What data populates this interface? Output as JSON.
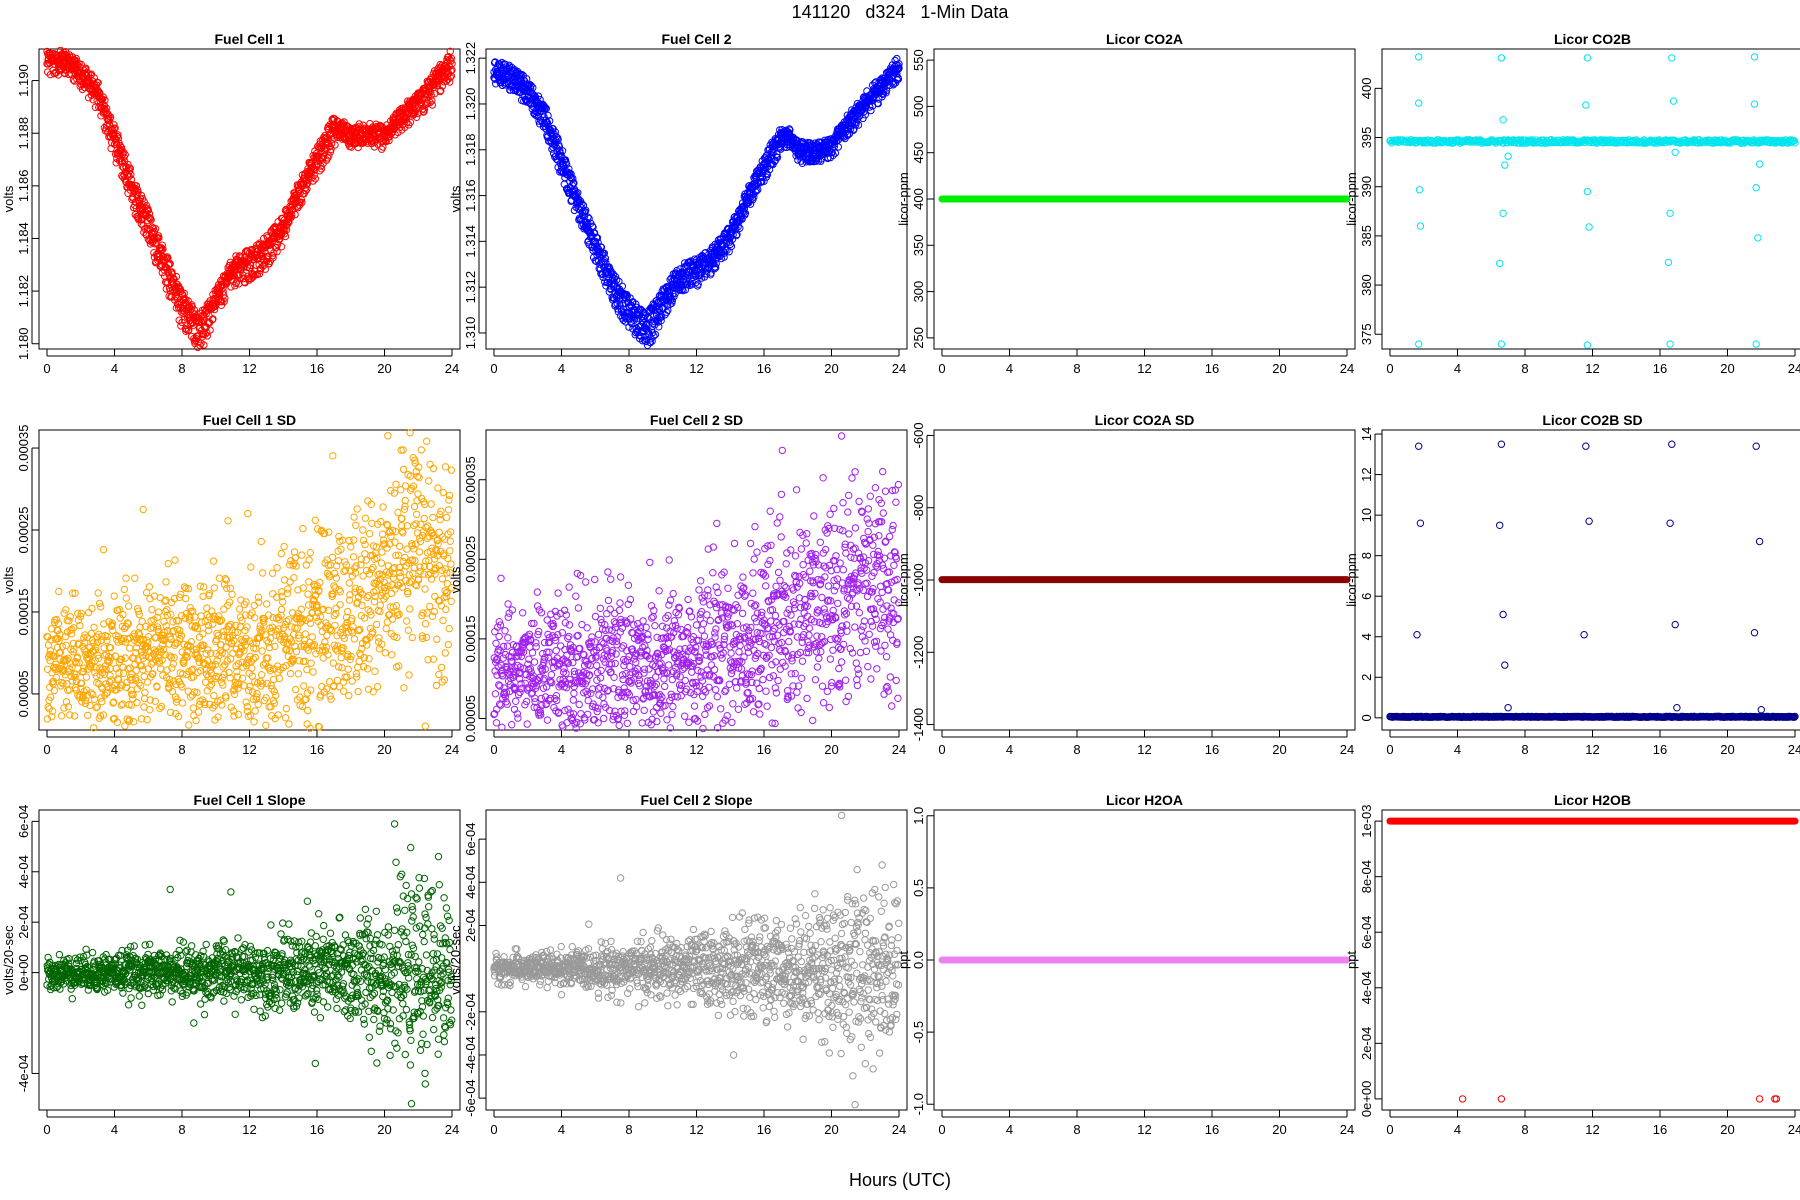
{
  "figure": {
    "title": "141120   d324   1-Min Data",
    "xlabel": "Hours (UTC)"
  },
  "chart_data": [
    {
      "id": "fc1",
      "type": "scatter",
      "title": "Fuel Cell 1",
      "ylabel": "volts",
      "color": "#ff0000",
      "xlim": [
        0,
        24
      ],
      "ylim": [
        1.1798,
        1.1912
      ],
      "xticks": [
        0,
        4,
        8,
        12,
        16,
        20,
        24
      ],
      "yticks": [
        1.18,
        1.182,
        1.184,
        1.186,
        1.188,
        1.19
      ],
      "ytick_labels": [
        "1.180",
        "1.182",
        "1.184",
        "1.186",
        "1.188",
        "1.190"
      ],
      "series": [
        {
          "band": 0.0009,
          "x": [
            0,
            1,
            2,
            3,
            4,
            5,
            6,
            7,
            8,
            9,
            9.3,
            10,
            11,
            12,
            13,
            14,
            15,
            16,
            17,
            17.5,
            18,
            19,
            20,
            21,
            22,
            23,
            23.5,
            24
          ],
          "y": [
            1.1905,
            1.1906,
            1.1902,
            1.1893,
            1.1875,
            1.1857,
            1.1842,
            1.1826,
            1.181,
            1.1802,
            1.1803,
            1.1815,
            1.1826,
            1.1828,
            1.1833,
            1.1842,
            1.1857,
            1.1868,
            1.1879,
            1.1882,
            1.1878,
            1.188,
            1.1878,
            1.1885,
            1.189,
            1.1896,
            1.1903,
            1.1904
          ]
        },
        {
          "band": 0.0006,
          "x": [
            0,
            1,
            2,
            3,
            4,
            5,
            6,
            7,
            8,
            9,
            10,
            11,
            12,
            13,
            14,
            15,
            16,
            17,
            18,
            19,
            20,
            21,
            22,
            23,
            24
          ],
          "y": [
            1.191,
            1.1909,
            1.1905,
            1.1897,
            1.188,
            1.1863,
            1.1848,
            1.1832,
            1.1818,
            1.1808,
            1.1818,
            1.183,
            1.1833,
            1.1838,
            1.1846,
            1.186,
            1.1872,
            1.1884,
            1.1879,
            1.1879,
            1.1879,
            1.1887,
            1.1893,
            1.1901,
            1.1909
          ]
        }
      ]
    },
    {
      "id": "fc2",
      "type": "scatter",
      "title": "Fuel Cell 2",
      "ylabel": "volts",
      "color": "#0000ff",
      "xlim": [
        0,
        24
      ],
      "ylim": [
        1.3093,
        1.3224
      ],
      "xticks": [
        0,
        4,
        8,
        12,
        16,
        20,
        24
      ],
      "yticks": [
        1.31,
        1.312,
        1.314,
        1.316,
        1.318,
        1.32,
        1.322
      ],
      "ytick_labels": [
        "1.310",
        "1.312",
        "1.314",
        "1.316",
        "1.318",
        "1.320",
        "1.322"
      ],
      "series": [
        {
          "band": 0.0008,
          "x": [
            0,
            1,
            2,
            3,
            4,
            5,
            6,
            7,
            8,
            9,
            9.3,
            10,
            11,
            12,
            13,
            14,
            15,
            16,
            17,
            17.5,
            18,
            19,
            20,
            21,
            22,
            23,
            23.5,
            24
          ],
          "y": [
            1.321,
            1.321,
            1.3203,
            1.3192,
            1.3172,
            1.3153,
            1.3135,
            1.3118,
            1.3105,
            1.3098,
            1.3099,
            1.311,
            1.3122,
            1.3124,
            1.313,
            1.314,
            1.3157,
            1.317,
            1.3183,
            1.3186,
            1.3178,
            1.3178,
            1.318,
            1.319,
            1.3198,
            1.3206,
            1.3212,
            1.3213
          ]
        },
        {
          "band": 0.0006,
          "x": [
            0,
            1,
            2,
            3,
            4,
            5,
            6,
            7,
            8,
            9,
            10,
            11,
            12,
            13,
            14,
            15,
            16,
            17,
            18,
            19,
            20,
            21,
            22,
            23,
            24
          ],
          "y": [
            1.3216,
            1.3214,
            1.3208,
            1.3197,
            1.3178,
            1.3158,
            1.3141,
            1.3124,
            1.3113,
            1.3105,
            1.3116,
            1.3127,
            1.313,
            1.3135,
            1.3144,
            1.316,
            1.3174,
            1.3188,
            1.3181,
            1.318,
            1.3182,
            1.3193,
            1.3202,
            1.321,
            1.3218
          ]
        }
      ]
    },
    {
      "id": "co2a",
      "type": "scatter",
      "title": "Licor CO2A",
      "ylabel": "licor-ppm",
      "color": "#00ee00",
      "xlim": [
        0,
        24
      ],
      "ylim": [
        238,
        562
      ],
      "xticks": [
        0,
        4,
        8,
        12,
        16,
        20,
        24
      ],
      "yticks": [
        250,
        300,
        350,
        400,
        450,
        500,
        550
      ],
      "ytick_labels": [
        "250",
        "300",
        "350",
        "400",
        "450",
        "500",
        "550"
      ],
      "constant": {
        "y": 400,
        "x": [
          0,
          24
        ]
      }
    },
    {
      "id": "co2b",
      "type": "scatter",
      "title": "Licor CO2B",
      "ylabel": "licor-ppm",
      "color": "#00e5ee",
      "xlim": [
        0,
        24
      ],
      "ylim": [
        373.5,
        404
      ],
      "xticks": [
        0,
        4,
        8,
        12,
        16,
        20,
        24
      ],
      "yticks": [
        375,
        380,
        385,
        390,
        395,
        400
      ],
      "ytick_labels": [
        "375",
        "380",
        "385",
        "390",
        "395",
        "400"
      ],
      "baseline": {
        "x": [
          0,
          24
        ],
        "y": [
          394.6,
          394.6
        ],
        "band": 0.35
      },
      "outliers": [
        {
          "x": 1.7,
          "y": 403.2
        },
        {
          "x": 1.7,
          "y": 398.5
        },
        {
          "x": 1.75,
          "y": 389.7
        },
        {
          "x": 1.8,
          "y": 386
        },
        {
          "x": 1.7,
          "y": 374
        },
        {
          "x": 6.6,
          "y": 403.1
        },
        {
          "x": 6.7,
          "y": 396.8
        },
        {
          "x": 6.7,
          "y": 387.3
        },
        {
          "x": 6.5,
          "y": 382.2
        },
        {
          "x": 6.6,
          "y": 374
        },
        {
          "x": 6.8,
          "y": 392.2
        },
        {
          "x": 7.0,
          "y": 393.1
        },
        {
          "x": 11.7,
          "y": 403.1
        },
        {
          "x": 11.6,
          "y": 398.3
        },
        {
          "x": 11.7,
          "y": 389.5
        },
        {
          "x": 11.8,
          "y": 385.9
        },
        {
          "x": 11.7,
          "y": 373.9
        },
        {
          "x": 16.7,
          "y": 403.1
        },
        {
          "x": 16.8,
          "y": 398.7
        },
        {
          "x": 16.6,
          "y": 387.3
        },
        {
          "x": 16.5,
          "y": 382.3
        },
        {
          "x": 16.6,
          "y": 374
        },
        {
          "x": 16.9,
          "y": 393.5
        },
        {
          "x": 21.6,
          "y": 403.2
        },
        {
          "x": 21.6,
          "y": 398.4
        },
        {
          "x": 21.7,
          "y": 389.9
        },
        {
          "x": 21.8,
          "y": 384.8
        },
        {
          "x": 21.7,
          "y": 374
        },
        {
          "x": 21.9,
          "y": 392.3
        }
      ]
    },
    {
      "id": "fc1sd",
      "type": "scatter",
      "title": "Fuel Cell 1 SD",
      "ylabel": "volts",
      "color": "#ffa500",
      "xlim": [
        0,
        24
      ],
      "ylim": [
        6e-06,
        0.000372
      ],
      "xticks": [
        0,
        4,
        8,
        12,
        16,
        20,
        24
      ],
      "yticks": [
        5e-05,
        0.00015,
        0.00025,
        0.00035
      ],
      "ytick_labels": [
        "0.00005",
        "0.00015",
        "0.00025",
        "0.00035"
      ],
      "trend": {
        "x": [
          0,
          4,
          8,
          12,
          16,
          18,
          20,
          22,
          24
        ],
        "y": [
          9e-05,
          8.5e-05,
          0.0001,
          9.5e-05,
          0.000135,
          0.00014,
          0.000185,
          0.000215,
          0.00021
        ]
      },
      "spread": 3.5e-05,
      "highlights": [
        {
          "x": 20.2,
          "y": 0.000365
        },
        {
          "x": 21.8,
          "y": 0.000335
        },
        {
          "x": 22.9,
          "y": 0.000325
        },
        {
          "x": 5.7,
          "y": 0.000275
        },
        {
          "x": 15.9,
          "y": 0.000262
        },
        {
          "x": 11.8,
          "y": 4e-05
        },
        {
          "x": 17.0,
          "y": 6e-05
        },
        {
          "x": 23.6,
          "y": 0.0001
        }
      ]
    },
    {
      "id": "fc2sd",
      "type": "scatter",
      "title": "Fuel Cell 2 SD",
      "ylabel": "volts",
      "color": "#a020f0",
      "xlim": [
        0,
        24
      ],
      "ylim": [
        3.55e-05,
        0.0004125
      ],
      "xticks": [
        0,
        4,
        8,
        12,
        16,
        20,
        24
      ],
      "yticks": [
        5e-05,
        0.00015,
        0.00025,
        0.00035
      ],
      "ytick_labels": [
        "0.00005",
        "0.00015",
        "0.00025",
        "0.00035"
      ],
      "trend": {
        "x": [
          0,
          4,
          8,
          12,
          16,
          18,
          20,
          22,
          24
        ],
        "y": [
          0.000115,
          0.00011,
          0.00012,
          0.000125,
          0.000155,
          0.00016,
          0.000205,
          0.000225,
          0.000215
        ]
      },
      "spread": 3.5e-05,
      "highlights": [
        {
          "x": 20.6,
          "y": 0.000405
        },
        {
          "x": 21.4,
          "y": 0.00036
        },
        {
          "x": 22.6,
          "y": 0.00034
        },
        {
          "x": 15.2,
          "y": 0.00027
        },
        {
          "x": 4.2,
          "y": 6e-05
        },
        {
          "x": 6.5,
          "y": 5e-05
        },
        {
          "x": 23.3,
          "y": 9e-05
        }
      ]
    },
    {
      "id": "co2asd",
      "type": "scatter",
      "title": "Licor CO2A SD",
      "ylabel": "licor-ppm",
      "color": "#8b0000",
      "xlim": [
        0,
        24
      ],
      "ylim": [
        -1415,
        -585
      ],
      "xticks": [
        0,
        4,
        8,
        12,
        16,
        20,
        24
      ],
      "yticks": [
        -1400,
        -1200,
        -1000,
        -800,
        -600
      ],
      "ytick_labels": [
        "-1400",
        "-1200",
        "-1000",
        "-800",
        "-600"
      ],
      "constant": {
        "y": -999,
        "x": [
          0,
          24
        ]
      }
    },
    {
      "id": "co2bsd",
      "type": "scatter",
      "title": "Licor CO2B SD",
      "ylabel": "licor-ppm",
      "color": "#00008b",
      "xlim": [
        0,
        24
      ],
      "ylim": [
        -0.6,
        14.2
      ],
      "xticks": [
        0,
        4,
        8,
        12,
        16,
        20,
        24
      ],
      "yticks": [
        0,
        2,
        4,
        6,
        8,
        10,
        12,
        14
      ],
      "ytick_labels": [
        "0",
        "2",
        "4",
        "6",
        "8",
        "10",
        "12",
        "14"
      ],
      "baseline": {
        "x": [
          0,
          24
        ],
        "y": [
          0.05,
          0.05
        ],
        "band": 0.04
      },
      "outliers": [
        {
          "x": 1.7,
          "y": 13.4
        },
        {
          "x": 1.8,
          "y": 9.6
        },
        {
          "x": 1.6,
          "y": 4.1
        },
        {
          "x": 6.6,
          "y": 13.5
        },
        {
          "x": 6.5,
          "y": 9.5
        },
        {
          "x": 6.7,
          "y": 5.1
        },
        {
          "x": 6.8,
          "y": 2.6
        },
        {
          "x": 7.0,
          "y": 0.5
        },
        {
          "x": 11.6,
          "y": 13.4
        },
        {
          "x": 11.8,
          "y": 9.7
        },
        {
          "x": 11.5,
          "y": 4.1
        },
        {
          "x": 16.7,
          "y": 13.5
        },
        {
          "x": 16.6,
          "y": 9.6
        },
        {
          "x": 16.9,
          "y": 4.6
        },
        {
          "x": 17.0,
          "y": 0.5
        },
        {
          "x": 21.7,
          "y": 13.4
        },
        {
          "x": 21.9,
          "y": 8.7
        },
        {
          "x": 21.6,
          "y": 4.2
        },
        {
          "x": 22.0,
          "y": 0.4
        }
      ]
    },
    {
      "id": "fc1slope",
      "type": "scatter",
      "title": "Fuel Cell 1 Slope",
      "ylabel": "volts/20-sec",
      "color": "#006400",
      "xlim": [
        0,
        24
      ],
      "ylim": [
        -0.000545,
        0.000645
      ],
      "xticks": [
        0,
        4,
        8,
        12,
        16,
        20,
        24
      ],
      "yticks": [
        -0.0004,
        0,
        0.0002,
        0.0004,
        0.0006
      ],
      "ytick_labels": [
        "-4e-04",
        "0e+00",
        "2e-04",
        "4e-04",
        "6e-04"
      ],
      "trend": {
        "x": [
          0,
          24
        ],
        "y": [
          0,
          0
        ]
      },
      "spread_profile": {
        "x": [
          0,
          4,
          8,
          12,
          16,
          18,
          20,
          22,
          24
        ],
        "s": [
          3e-05,
          4e-05,
          5e-05,
          6e-05,
          9e-05,
          0.0001,
          0.00014,
          0.00016,
          0.00015
        ]
      },
      "highlights": [
        {
          "x": 20.6,
          "y": 0.00059
        },
        {
          "x": 7.3,
          "y": 0.00033
        },
        {
          "x": 10.9,
          "y": 0.00032
        },
        {
          "x": 23.2,
          "y": 0.00046
        },
        {
          "x": 21.6,
          "y": -0.00052
        },
        {
          "x": 22.4,
          "y": -0.0004
        },
        {
          "x": 15.9,
          "y": -0.00036
        },
        {
          "x": 8.7,
          "y": -0.0002
        }
      ]
    },
    {
      "id": "fc2slope",
      "type": "scatter",
      "title": "Fuel Cell 2 Slope",
      "ylabel": "volts/20-sec",
      "color": "#999999",
      "xlim": [
        0,
        24
      ],
      "ylim": [
        -0.000655,
        0.000735
      ],
      "xticks": [
        0,
        4,
        8,
        12,
        16,
        20,
        24
      ],
      "yticks": [
        -0.0006,
        -0.0004,
        -0.0002,
        0.0002,
        0.0004,
        0.0006
      ],
      "ytick_labels": [
        "-6e-04",
        "-4e-04",
        "-2e-04",
        "2e-04",
        "4e-04",
        "6e-04"
      ],
      "trend": {
        "x": [
          0,
          24
        ],
        "y": [
          0,
          0
        ]
      },
      "spread_profile": {
        "x": [
          0,
          4,
          8,
          12,
          16,
          18,
          20,
          22,
          24
        ],
        "s": [
          3e-05,
          4e-05,
          6e-05,
          8e-05,
          0.00011,
          0.00012,
          0.00017,
          0.00019,
          0.00017
        ]
      },
      "highlights": [
        {
          "x": 20.6,
          "y": 0.00071
        },
        {
          "x": 7.5,
          "y": 0.00042
        },
        {
          "x": 21.4,
          "y": -0.00063
        },
        {
          "x": 14.2,
          "y": -0.0004
        },
        {
          "x": 23.0,
          "y": 0.00048
        }
      ]
    },
    {
      "id": "h2oa",
      "type": "scatter",
      "title": "Licor H2OA",
      "ylabel": "ppt",
      "color": "#ee82ee",
      "xlim": [
        0,
        24
      ],
      "ylim": [
        -1.04,
        1.04
      ],
      "xticks": [
        0,
        4,
        8,
        12,
        16,
        20,
        24
      ],
      "yticks": [
        -1.0,
        -0.5,
        0.0,
        0.5,
        1.0
      ],
      "ytick_labels": [
        "-1.0",
        "-0.5",
        "0.0",
        "0.5",
        "1.0"
      ],
      "constant": {
        "y": 0,
        "x": [
          0,
          24
        ]
      }
    },
    {
      "id": "h2ob",
      "type": "scatter",
      "title": "Licor H2OB",
      "ylabel": "ppt",
      "color": "#ff0000",
      "xlim": [
        0,
        24
      ],
      "ylim": [
        -4e-05,
        0.00104
      ],
      "xticks": [
        0,
        4,
        8,
        12,
        16,
        20,
        24
      ],
      "yticks": [
        0,
        0.0002,
        0.0004,
        0.0006,
        0.0008,
        0.001
      ],
      "ytick_labels": [
        "0e+00",
        "2e-04",
        "4e-04",
        "6e-04",
        "8e-04",
        "1e-03"
      ],
      "constant": {
        "y": 0.001,
        "x": [
          0,
          24
        ]
      },
      "outliers": [
        {
          "x": 4.3,
          "y": 0
        },
        {
          "x": 6.6,
          "y": 0
        },
        {
          "x": 21.9,
          "y": 0
        },
        {
          "x": 22.8,
          "y": 0
        },
        {
          "x": 22.9,
          "y": 0
        }
      ]
    }
  ]
}
